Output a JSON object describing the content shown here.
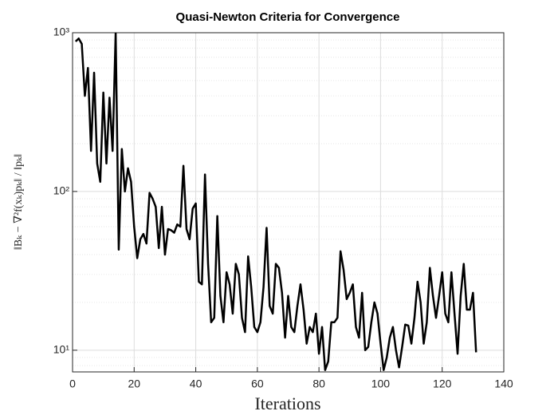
{
  "chart_data": {
    "type": "line",
    "title": "Quasi-Newton Criteria for Convergence",
    "x_label": "Iterations",
    "y_label": "‖Bₖ − ∇²f(xₖ)pₖ‖ / ‖pₖ‖",
    "x": [
      1,
      2,
      3,
      4,
      5,
      6,
      7,
      8,
      9,
      10,
      11,
      12,
      13,
      14,
      15,
      16,
      17,
      18,
      19,
      20,
      21,
      22,
      23,
      24,
      25,
      26,
      27,
      28,
      29,
      30,
      31,
      32,
      33,
      34,
      35,
      36,
      37,
      38,
      39,
      40,
      41,
      42,
      43,
      44,
      45,
      46,
      47,
      48,
      49,
      50,
      51,
      52,
      53,
      54,
      55,
      56,
      57,
      58,
      59,
      60,
      61,
      62,
      63,
      64,
      65,
      66,
      67,
      68,
      69,
      70,
      71,
      72,
      73,
      74,
      75,
      76,
      77,
      78,
      79,
      80,
      81,
      82,
      83,
      84,
      85,
      86,
      87,
      88,
      89,
      90,
      91,
      92,
      93,
      94,
      95,
      96,
      97,
      98,
      99,
      100,
      101,
      102,
      103,
      104,
      105,
      106,
      107,
      108,
      109,
      110,
      111,
      112,
      113,
      114,
      115,
      116,
      117,
      118,
      119,
      120,
      121,
      122,
      123,
      124,
      125,
      126,
      127,
      128,
      129,
      130,
      131
    ],
    "values": [
      880,
      920,
      850,
      400,
      600,
      180,
      560,
      150,
      115,
      420,
      150,
      390,
      180,
      1000,
      43,
      185,
      100,
      140,
      115,
      60,
      38,
      50,
      54,
      47,
      98,
      90,
      80,
      44,
      80,
      40,
      58,
      57,
      55,
      62,
      60,
      145,
      58,
      50,
      78,
      84,
      27,
      26,
      128,
      35,
      15,
      16,
      70,
      22,
      15,
      31,
      26,
      17,
      35,
      30,
      16,
      13,
      39,
      25,
      14,
      13,
      15,
      25,
      59,
      19,
      17,
      35,
      33,
      23,
      12,
      22,
      14,
      13,
      19,
      26,
      18,
      11,
      14,
      13,
      17,
      9.5,
      14,
      7.5,
      8.5,
      15,
      15,
      16,
      42,
      32,
      21,
      23,
      26,
      14,
      12,
      23,
      10,
      10.5,
      15,
      20,
      17,
      11,
      7.5,
      9,
      12,
      14,
      10,
      7.8,
      10.5,
      14.5,
      14.3,
      11,
      16,
      27,
      20,
      11,
      15,
      33,
      22,
      16,
      22,
      31,
      17,
      15,
      31,
      17,
      9.5,
      22,
      35,
      18,
      18,
      23,
      9.7
    ],
    "color": "#000000",
    "xlim": [
      0,
      140
    ],
    "xticks": [
      0,
      20,
      40,
      60,
      80,
      100,
      120,
      140
    ],
    "ylim": [
      7.3,
      1000
    ],
    "yscale": "log",
    "yticks": [
      {
        "value": 10,
        "label": "10¹"
      },
      {
        "value": 100,
        "label": "10²"
      },
      {
        "value": 1000,
        "label": "10³"
      }
    ],
    "grid": true,
    "minor_grid": true
  }
}
